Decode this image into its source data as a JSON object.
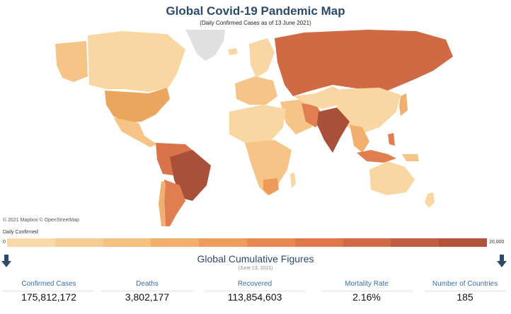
{
  "header": {
    "title": "Global Covid-19 Pandemic Map",
    "subtitle": "(Daily Confirmed Cases as of 13 June 2021)"
  },
  "map": {
    "credit": "© 2021 Mapbox © OpenStreetMap",
    "colors": {
      "lowest": "#f9d7a3",
      "low": "#f6c487",
      "mid": "#ee9a58",
      "high": "#d9734a",
      "highest": "#b4513a",
      "no_data": "#e0e0e0"
    }
  },
  "legend": {
    "title": "Daily Confirmed",
    "min": "0",
    "max": "20,000",
    "steps": [
      "#f9d8aa",
      "#f7cd94",
      "#f5c080",
      "#f2ae6b",
      "#ee9c5d",
      "#e88954",
      "#de784c",
      "#cf6a45",
      "#c05d40",
      "#b4533c"
    ]
  },
  "summary": {
    "title": "Global Cumulative Figures",
    "date": "(June 13, 2021)",
    "stats": [
      {
        "label": "Confirmed Cases",
        "value": "175,812,172"
      },
      {
        "label": "Deaths",
        "value": "3,802,177"
      },
      {
        "label": "Recovered",
        "value": "113,854,603"
      },
      {
        "label": "Mortality Rate",
        "value": "2.16%"
      },
      {
        "label": "Number of Countries",
        "value": "185"
      }
    ]
  }
}
